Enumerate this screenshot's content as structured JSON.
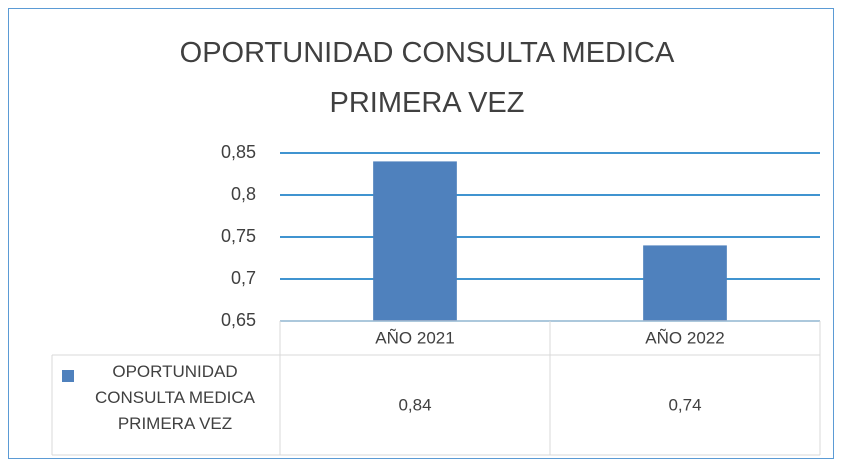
{
  "chart_data": {
    "type": "bar",
    "title": "OPORTUNIDAD CONSULTA MEDICA PRIMERA VEZ",
    "categories": [
      "AÑO 2021",
      "AÑO 2022"
    ],
    "series": [
      {
        "name": "OPORTUNIDAD CONSULTA MEDICA PRIMERA VEZ",
        "color": "#4f81bd",
        "values": [
          0.84,
          0.74
        ],
        "value_labels": [
          "0,84",
          "0,74"
        ]
      }
    ],
    "ylim": [
      0.65,
      0.85
    ],
    "yticks": [
      {
        "value": 0.65,
        "label": "0,65"
      },
      {
        "value": 0.7,
        "label": "0,7"
      },
      {
        "value": 0.75,
        "label": "0,75"
      },
      {
        "value": 0.8,
        "label": "0,8"
      },
      {
        "value": 0.85,
        "label": "0,85"
      }
    ],
    "grid": true
  }
}
